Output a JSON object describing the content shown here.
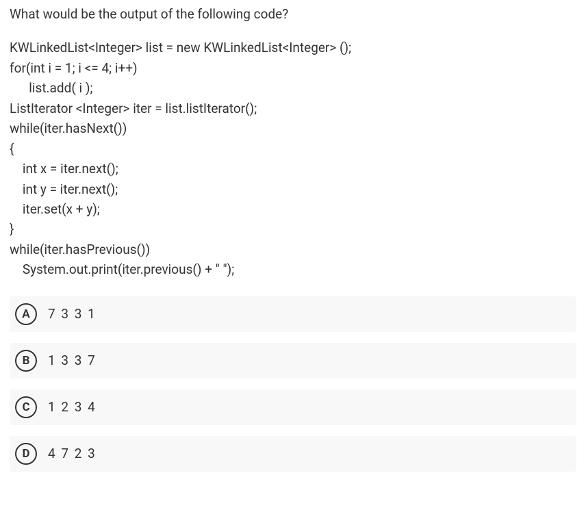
{
  "question": "What would be the output of the following code?",
  "code_lines": [
    "KWLinkedList<Integer> list = new KWLinkedList<Integer> ();",
    "for(int i = 1; i <= 4; i++)",
    "      list.add( i );",
    "ListIterator <Integer> iter = list.listIterator();",
    "while(iter.hasNext())",
    "{",
    "    int x = iter.next();",
    "    int y = iter.next();",
    "    iter.set(x + y);",
    "}",
    "while(iter.hasPrevious())",
    "    System.out.print(iter.previous() + \" \");"
  ],
  "options": [
    {
      "letter": "A",
      "text": "7 3 3 1"
    },
    {
      "letter": "B",
      "text": "1 3 3 7"
    },
    {
      "letter": "C",
      "text": "1 2 3 4"
    },
    {
      "letter": "D",
      "text": "4 7 2 3"
    }
  ],
  "colors": {
    "background": "#ffffff",
    "text": "#333333",
    "option_bg": "#f8f8f8",
    "circle_border": "#333333"
  },
  "typography": {
    "body_fontsize": 19,
    "option_letter_fontsize": 17,
    "option_letter_weight": 700
  }
}
